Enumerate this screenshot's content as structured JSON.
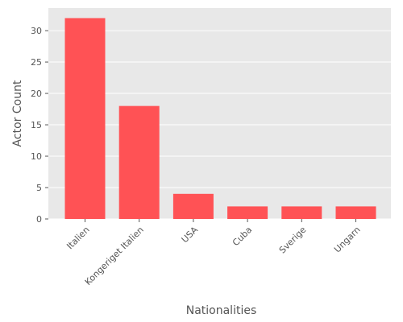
{
  "chart_data": {
    "type": "bar",
    "title": "",
    "xlabel": "Nationalities",
    "ylabel": "Actor Count",
    "categories": [
      "Italien",
      "Kongeriget Italien",
      "USA",
      "Cuba",
      "Sverige",
      "Ungarn"
    ],
    "values": [
      32,
      18,
      4,
      2,
      2,
      2
    ],
    "ylim": [
      0,
      33.6
    ],
    "yticks": [
      0,
      5,
      10,
      15,
      20,
      25,
      30
    ],
    "grid": true,
    "legend": "none",
    "colors": {
      "bar": "#ff5255",
      "background": "#e8e8e8",
      "grid": "#ffffff",
      "text": "#555555"
    }
  }
}
